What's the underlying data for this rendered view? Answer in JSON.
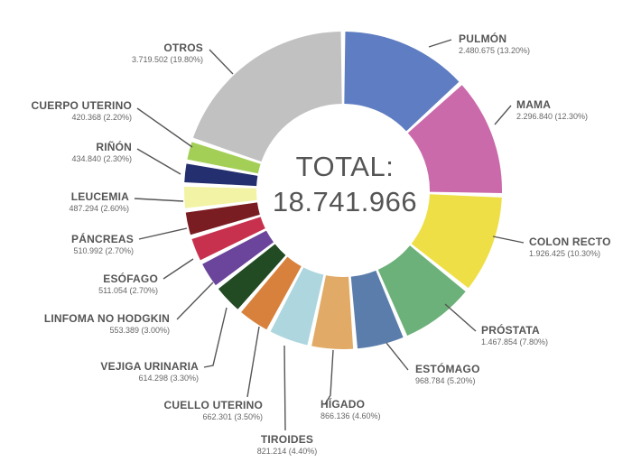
{
  "chart_data": {
    "type": "pie",
    "variant": "donut",
    "center_label": "TOTAL:",
    "center_value": "18.741.966",
    "slices": [
      {
        "name": "PULMÓN",
        "value_text": "2.480.675 (13.20%)",
        "value": 2480675,
        "percent": 13.2,
        "color": "#5f7dc2"
      },
      {
        "name": "MAMA",
        "value_text": "2.296.840 (12.30%)",
        "value": 2296840,
        "percent": 12.3,
        "color": "#cb6aaa"
      },
      {
        "name": "COLON RECTO",
        "value_text": "1.926.425 (10.30%)",
        "value": 1926425,
        "percent": 10.3,
        "color": "#eedf46"
      },
      {
        "name": "PRÓSTATA",
        "value_text": "1.467.854 (7.80%)",
        "value": 1467854,
        "percent": 7.8,
        "color": "#6cb179"
      },
      {
        "name": "ESTÓMAGO",
        "value_text": "968.784 (5.20%)",
        "value": 968784,
        "percent": 5.2,
        "color": "#5a7dab"
      },
      {
        "name": "HÍGADO",
        "value_text": "866.136 (4.60%)",
        "value": 866136,
        "percent": 4.6,
        "color": "#e1aa66"
      },
      {
        "name": "TIROIDES",
        "value_text": "821.214 (4.40%)",
        "value": 821214,
        "percent": 4.4,
        "color": "#add6df"
      },
      {
        "name": "CUELLO UTERINO",
        "value_text": "662.301 (3.50%)",
        "value": 662301,
        "percent": 3.5,
        "color": "#d8813c"
      },
      {
        "name": "VEJIGA URINARIA",
        "value_text": "614.298 (3.30%)",
        "value": 614298,
        "percent": 3.3,
        "color": "#224a23"
      },
      {
        "name": "LINFOMA NO HODGKIN",
        "value_text": "553.389 (3.00%)",
        "value": 553389,
        "percent": 3.0,
        "color": "#6b449b"
      },
      {
        "name": "ESÓFAGO",
        "value_text": "511.054 (2.70%)",
        "value": 511054,
        "percent": 2.7,
        "color": "#c8314e"
      },
      {
        "name": "PÁNCREAS",
        "value_text": "510.992 (2.70%)",
        "value": 510992,
        "percent": 2.7,
        "color": "#7a1d22"
      },
      {
        "name": "LEUCEMIA",
        "value_text": "487.294 (2.60%)",
        "value": 487294,
        "percent": 2.6,
        "color": "#f2f3a5"
      },
      {
        "name": "RIÑÓN",
        "value_text": "434.840 (2.30%)",
        "value": 434840,
        "percent": 2.3,
        "color": "#232f6e"
      },
      {
        "name": "CUERPO UTERINO",
        "value_text": "420.368 (2.20%)",
        "value": 420368,
        "percent": 2.2,
        "color": "#a3cf56"
      },
      {
        "name": "OTROS",
        "value_text": "3.719.502 (19.80%)",
        "value": 3719502,
        "percent": 19.8,
        "color": "#c1c1c1"
      }
    ]
  }
}
